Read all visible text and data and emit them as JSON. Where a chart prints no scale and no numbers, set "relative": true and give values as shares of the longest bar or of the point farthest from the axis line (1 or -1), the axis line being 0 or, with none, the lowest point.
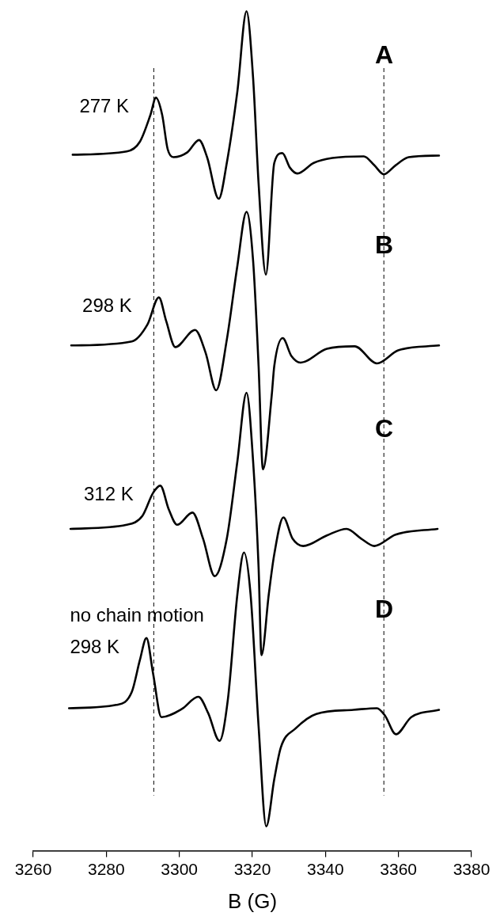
{
  "chart_data": {
    "type": "line",
    "relative": true,
    "xlabel": "B (G)",
    "xlim": [
      3260,
      3380
    ],
    "xticks": [
      3260,
      3280,
      3300,
      3320,
      3340,
      3360,
      3380
    ],
    "grid": false,
    "legend": false,
    "marker": "none",
    "line_style": "solid",
    "tick_labels": "x",
    "series": [
      {
        "name": "277 K",
        "color": "#000000",
        "x": [
          3270.8,
          3285.6,
          3289.2,
          3292.1,
          3293.6,
          3295.3,
          3296.8,
          3298.4,
          3302.2,
          3305.4,
          3307.6,
          3310.8,
          3313.0,
          3315.9,
          3318.4,
          3320.2,
          3321.7,
          3323.7,
          3326.0,
          3328.2,
          3330.3,
          3332.3,
          3336.8,
          3341.9,
          3350.5,
          3353.4,
          3356.0,
          3359.2,
          3362.8,
          3371.1
        ],
        "values": [
          0.824,
          0.828,
          0.84,
          0.873,
          0.894,
          0.873,
          0.831,
          0.821,
          0.827,
          0.842,
          0.821,
          0.77,
          0.814,
          0.902,
          1,
          0.918,
          0.789,
          0.677,
          0.814,
          0.826,
          0.808,
          0.801,
          0.814,
          0.82,
          0.822,
          0.811,
          0.8,
          0.811,
          0.821,
          0.823
        ]
      },
      {
        "name": "298 K",
        "color": "#000000",
        "x": [
          3270.4,
          3287.0,
          3291.3,
          3294.4,
          3296.4,
          3298.9,
          3304.3,
          3307.2,
          3310.1,
          3313.0,
          3315.9,
          3318.4,
          3320.2,
          3321.7,
          3322.9,
          3325.3,
          3326.0,
          3328.3,
          3330.7,
          3333.2,
          3340.4,
          3348.0,
          3354.1,
          3359.9,
          3371.1
        ],
        "values": [
          0.59,
          0.595,
          0.616,
          0.649,
          0.62,
          0.588,
          0.609,
          0.581,
          0.535,
          0.597,
          0.688,
          0.754,
          0.694,
          0.565,
          0.438,
          0.529,
          0.565,
          0.599,
          0.577,
          0.569,
          0.586,
          0.589,
          0.568,
          0.584,
          0.59
        ]
      },
      {
        "name": "312 K",
        "color": "#000000",
        "x": [
          3270.2,
          3285.6,
          3289.9,
          3292.8,
          3294.8,
          3297.1,
          3299.4,
          3303.6,
          3306.5,
          3309.7,
          3313.0,
          3315.9,
          3318.4,
          3320.2,
          3321.7,
          3322.5,
          3324.5,
          3326.0,
          3328.5,
          3331.0,
          3333.9,
          3340.4,
          3345.8,
          3349.8,
          3353.4,
          3359.2,
          3370.7
        ],
        "values": [
          0.365,
          0.37,
          0.381,
          0.409,
          0.418,
          0.389,
          0.37,
          0.385,
          0.353,
          0.307,
          0.353,
          0.448,
          0.532,
          0.448,
          0.318,
          0.21,
          0.285,
          0.334,
          0.379,
          0.353,
          0.344,
          0.357,
          0.365,
          0.353,
          0.344,
          0.358,
          0.365
        ]
      },
      {
        "name": "no chain motion\n298 K",
        "color": "#000000",
        "x": [
          3269.8,
          3282.7,
          3287.0,
          3289.2,
          3291.0,
          3292.8,
          3295.1,
          3300.7,
          3305.2,
          3307.9,
          3311.0,
          3313.3,
          3315.9,
          3317.7,
          3319.5,
          3321.7,
          3323.8,
          3326.0,
          3327.8,
          3331.8,
          3337.5,
          3347.7,
          3354.1,
          3356.3,
          3359.3,
          3363.5,
          3371.1
        ],
        "values": [
          0.145,
          0.149,
          0.165,
          0.204,
          0.231,
          0.188,
          0.134,
          0.144,
          0.159,
          0.139,
          0.105,
          0.156,
          0.285,
          0.336,
          0.285,
          0.123,
          0,
          0.058,
          0.097,
          0.12,
          0.138,
          0.143,
          0.145,
          0.136,
          0.113,
          0.134,
          0.143
        ]
      }
    ],
    "ref_lines": [
      {
        "axis": "x",
        "value": 3293,
        "color": "#000000",
        "line_style": "dashed"
      },
      {
        "axis": "x",
        "value": 3356,
        "color": "#000000",
        "line_style": "dashed"
      }
    ],
    "annotations": [
      "A",
      "B",
      "C",
      "D"
    ]
  }
}
